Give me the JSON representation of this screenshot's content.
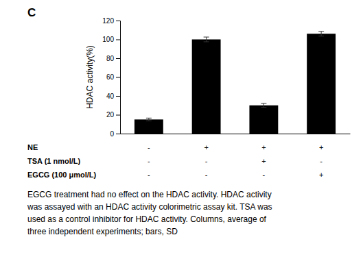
{
  "chart_data": {
    "type": "bar",
    "panel_label": "C",
    "categories": [
      null,
      null,
      null,
      null
    ],
    "values": [
      15,
      100,
      30,
      106
    ],
    "errors": [
      1.5,
      2.5,
      2.0,
      2.5
    ],
    "color": "#000000",
    "ylabel": "HDAC activity(%)",
    "ylim": [
      0,
      120
    ],
    "yticks": [
      0,
      20,
      40,
      60,
      80,
      100,
      120
    ],
    "tick_labels": "y",
    "grid": false,
    "row_labels": [
      "NE",
      "TSA (1 nmol/L)",
      "EGCG (100 μmol/L)"
    ],
    "row_signs": [
      [
        "-",
        "+",
        "+",
        "+"
      ],
      [
        "-",
        "-",
        "+",
        "-"
      ],
      [
        "-",
        "-",
        "-",
        "+"
      ]
    ],
    "caption": [
      "EGCG treatment had no effect on the HDAC activity. HDAC activity",
      "was assayed with an HDAC activity colorimetric assay kit. TSA was",
      "used as a control inhibitor for HDAC activity. Columns, average of",
      "three independent experiments; bars, SD"
    ]
  }
}
